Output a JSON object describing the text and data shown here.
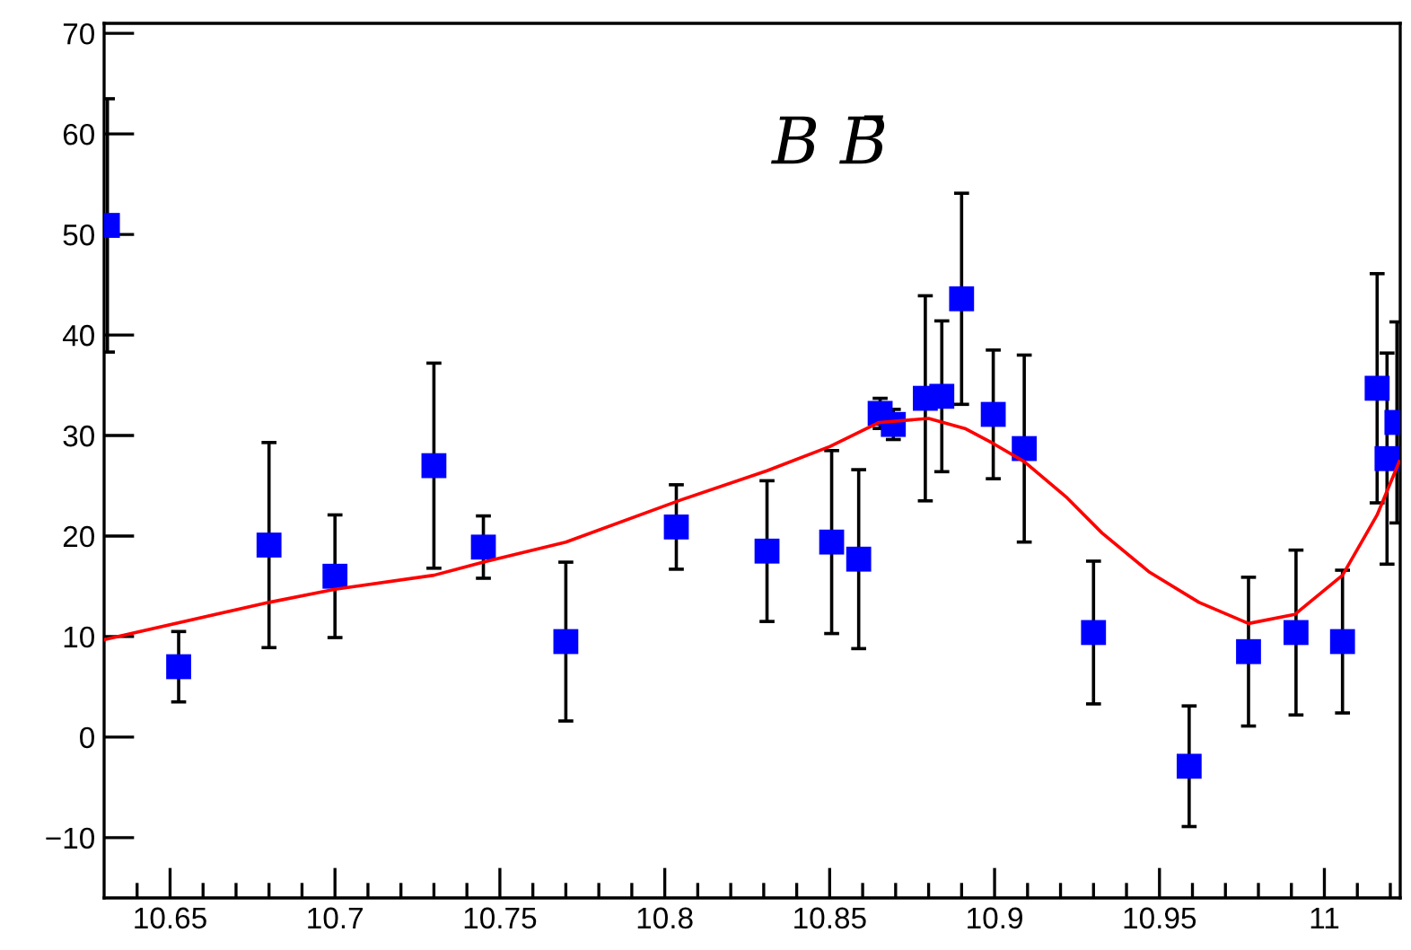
{
  "chart_data": {
    "type": "scatter",
    "annotations": [
      "B B̄"
    ],
    "xlim": [
      10.63,
      11.023
    ],
    "ylim": [
      -16,
      71
    ],
    "xticks": [
      {
        "value": 10.64,
        "label": null
      },
      {
        "value": 10.65,
        "label": "10.65"
      },
      {
        "value": 10.66,
        "label": null
      },
      {
        "value": 10.67,
        "label": null
      },
      {
        "value": 10.68,
        "label": null
      },
      {
        "value": 10.69,
        "label": null
      },
      {
        "value": 10.7,
        "label": "10.7"
      },
      {
        "value": 10.71,
        "label": null
      },
      {
        "value": 10.72,
        "label": null
      },
      {
        "value": 10.73,
        "label": null
      },
      {
        "value": 10.74,
        "label": null
      },
      {
        "value": 10.75,
        "label": "10.75"
      },
      {
        "value": 10.76,
        "label": null
      },
      {
        "value": 10.77,
        "label": null
      },
      {
        "value": 10.78,
        "label": null
      },
      {
        "value": 10.79,
        "label": null
      },
      {
        "value": 10.8,
        "label": "10.8"
      },
      {
        "value": 10.81,
        "label": null
      },
      {
        "value": 10.82,
        "label": null
      },
      {
        "value": 10.83,
        "label": null
      },
      {
        "value": 10.84,
        "label": null
      },
      {
        "value": 10.85,
        "label": "10.85"
      },
      {
        "value": 10.86,
        "label": null
      },
      {
        "value": 10.87,
        "label": null
      },
      {
        "value": 10.88,
        "label": null
      },
      {
        "value": 10.89,
        "label": null
      },
      {
        "value": 10.9,
        "label": "10.9"
      },
      {
        "value": 10.91,
        "label": null
      },
      {
        "value": 10.92,
        "label": null
      },
      {
        "value": 10.93,
        "label": null
      },
      {
        "value": 10.94,
        "label": null
      },
      {
        "value": 10.95,
        "label": "10.95"
      },
      {
        "value": 10.96,
        "label": null
      },
      {
        "value": 10.97,
        "label": null
      },
      {
        "value": 10.98,
        "label": null
      },
      {
        "value": 10.99,
        "label": null
      },
      {
        "value": 11,
        "label": "11"
      },
      {
        "value": 11.01,
        "label": null
      },
      {
        "value": 11.02,
        "label": null
      }
    ],
    "yticks": [
      {
        "value": -10,
        "label": "−10"
      },
      0,
      10,
      20,
      30,
      40,
      50,
      60,
      70
    ],
    "grid": false,
    "legend": false,
    "series": [
      {
        "marker": "square",
        "color": "#0000ff",
        "x": [
          10.631,
          10.6526,
          10.68,
          10.7,
          10.73,
          10.745,
          10.77,
          10.8035,
          10.831,
          10.8506,
          10.8588,
          10.8653,
          10.8693,
          10.879,
          10.884,
          10.89,
          10.8996,
          10.909,
          10.93,
          10.959,
          10.977,
          10.9914,
          11.0055,
          11.016,
          11.019,
          11.022
        ],
        "values": [
          50.9,
          7.0,
          19.1,
          16.0,
          27.0,
          18.9,
          9.5,
          20.9,
          18.5,
          19.4,
          17.7,
          32.2,
          31.1,
          33.7,
          33.9,
          43.6,
          32.1,
          28.7,
          10.4,
          -2.9,
          8.5,
          10.4,
          9.5,
          34.7,
          27.7,
          31.3
        ],
        "errors": [
          12.6,
          3.5,
          10.2,
          6.1,
          10.2,
          3.1,
          7.9,
          4.2,
          7.0,
          9.1,
          8.9,
          1.5,
          1.5,
          10.2,
          7.5,
          10.5,
          6.4,
          9.3,
          7.1,
          6.0,
          7.4,
          8.2,
          7.1,
          11.4,
          10.5,
          10.0
        ]
      },
      {
        "type": "line",
        "color": "#ff0000",
        "x": [
          10.63,
          10.68,
          10.7,
          10.73,
          10.745,
          10.77,
          10.805,
          10.831,
          10.85,
          10.865,
          10.88,
          10.891,
          10.8996,
          10.909,
          10.922,
          10.9326,
          10.947,
          10.962,
          10.977,
          10.991,
          11.0055,
          11.016,
          11.0227
        ],
        "values": [
          9.7,
          13.4,
          14.7,
          16.1,
          17.4,
          19.4,
          23.6,
          26.5,
          28.9,
          31.3,
          31.7,
          30.7,
          29.2,
          27.4,
          23.8,
          20.3,
          16.4,
          13.4,
          11.3,
          12.2,
          16.1,
          22.1,
          27.4
        ]
      }
    ]
  }
}
